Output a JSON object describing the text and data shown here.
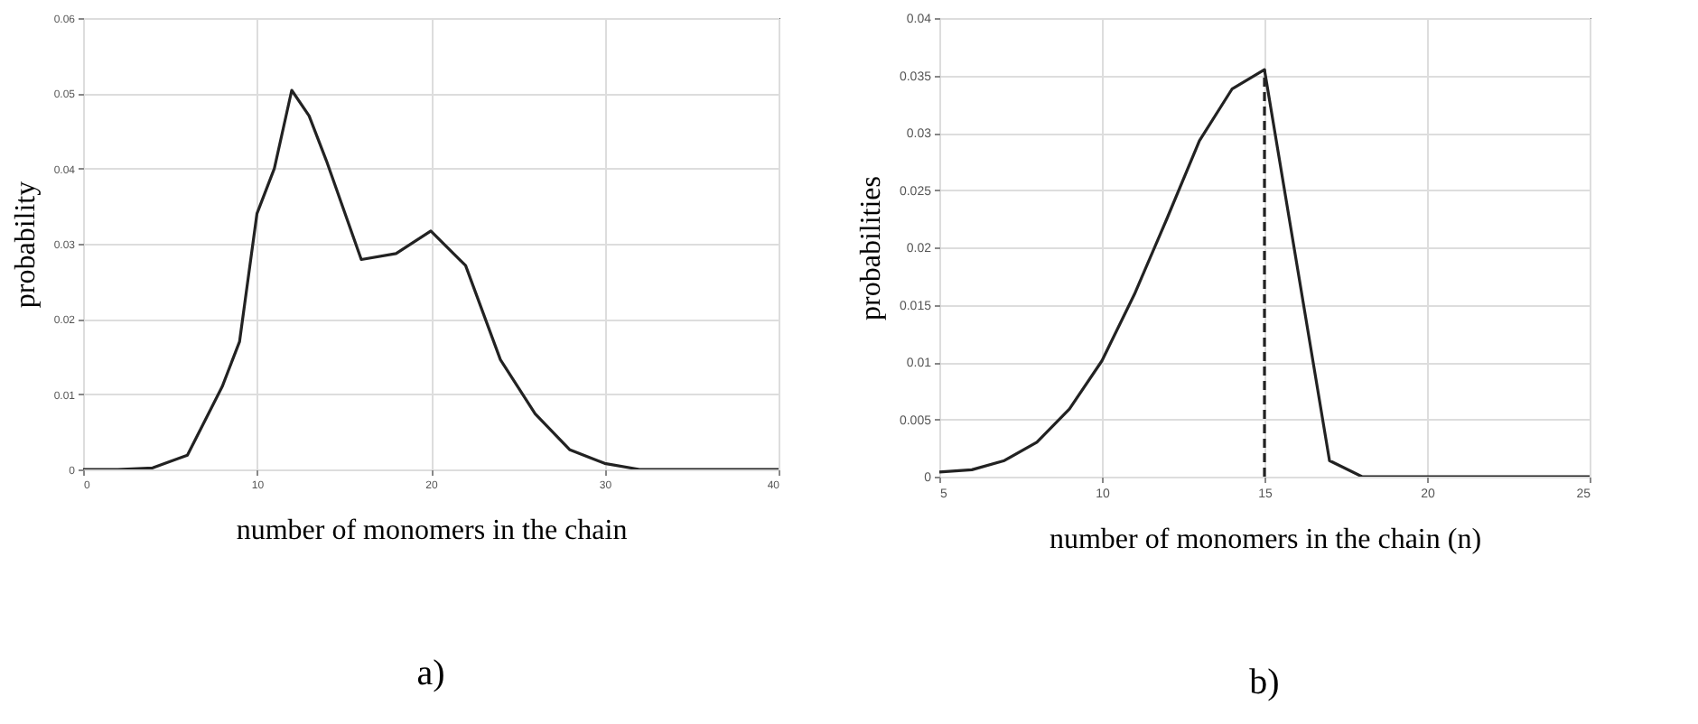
{
  "chart_data": [
    {
      "type": "line",
      "xlabel": "number of monomers in the chain",
      "ylabel": "probability",
      "annotations": [
        "a)"
      ],
      "grid": true,
      "line_style": "solid",
      "x": [
        0,
        2,
        4,
        6,
        8,
        9,
        10,
        11,
        12,
        13,
        14,
        16,
        18,
        20,
        22,
        24,
        26,
        28,
        30,
        32,
        40
      ],
      "series": [
        {
          "color": "#222222",
          "values": [
            0,
            0,
            0.0002,
            0.0019,
            0.011,
            0.017,
            0.034,
            0.04,
            0.0504,
            0.047,
            0.041,
            0.0279,
            0.0287,
            0.0317,
            0.0271,
            0.0146,
            0.0074,
            0.0026,
            0.0008,
            0,
            0
          ]
        }
      ],
      "xlim": [
        0,
        40
      ],
      "xticks": [
        0,
        10,
        20,
        30,
        40
      ],
      "ylim": [
        0,
        0.06
      ],
      "yticks": [
        0,
        0.01,
        0.02,
        0.03,
        0.04,
        0.05,
        0.06
      ]
    },
    {
      "type": "line",
      "xlabel": "number of monomers in the chain (n)",
      "ylabel": "probabilities",
      "annotations": [
        "b)"
      ],
      "grid": true,
      "line_style": "solid",
      "x": [
        5,
        6,
        7,
        8,
        9,
        10,
        11,
        12,
        13,
        14,
        15,
        17,
        18,
        19,
        20,
        21,
        22,
        23,
        24,
        25
      ],
      "series": [
        {
          "color": "#222222",
          "values": [
            0.0004,
            0.0006,
            0.0014,
            0.003,
            0.0059,
            0.0101,
            0.0159,
            0.0225,
            0.0293,
            0.0338,
            0.0355,
            0.0014,
            0,
            0,
            0,
            0,
            0,
            0,
            0,
            0
          ]
        }
      ],
      "ref_lines": [
        {
          "axis": "x",
          "value": 15,
          "line_style": "dashed",
          "color": "#222222"
        }
      ],
      "xlim": [
        5,
        25
      ],
      "xticks": [
        5,
        10,
        15,
        20,
        25
      ],
      "ylim": [
        0,
        0.04
      ],
      "yticks": [
        0,
        0.005,
        0.01,
        0.015,
        0.02,
        0.025,
        0.03,
        0.035,
        0.04
      ]
    }
  ]
}
